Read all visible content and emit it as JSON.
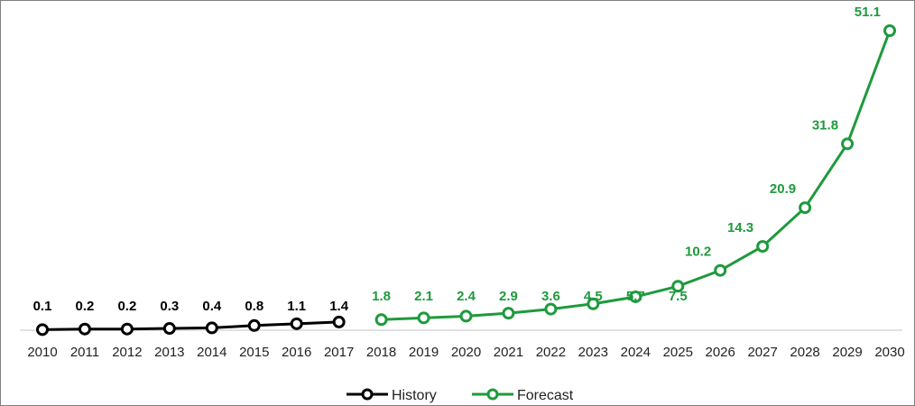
{
  "chart_data": {
    "type": "line",
    "x": [
      "2010",
      "2011",
      "2012",
      "2013",
      "2014",
      "2015",
      "2016",
      "2017",
      "2018",
      "2019",
      "2020",
      "2021",
      "2022",
      "2023",
      "2024",
      "2025",
      "2026",
      "2027",
      "2028",
      "2029",
      "2030"
    ],
    "series": [
      {
        "name": "History",
        "color": "#000000",
        "x": [
          "2010",
          "2011",
          "2012",
          "2013",
          "2014",
          "2015",
          "2016",
          "2017"
        ],
        "values": [
          0.1,
          0.2,
          0.2,
          0.3,
          0.4,
          0.8,
          1.1,
          1.4
        ],
        "labels": [
          "0.1",
          "0.2",
          "0.2",
          "0.3",
          "0.4",
          "0.8",
          "1.1",
          "1.4"
        ]
      },
      {
        "name": "Forecast",
        "color": "#1e9a3c",
        "x": [
          "2018",
          "2019",
          "2020",
          "2021",
          "2022",
          "2023",
          "2024",
          "2025",
          "2026",
          "2027",
          "2028",
          "2029",
          "2030"
        ],
        "values": [
          1.8,
          2.1,
          2.4,
          2.9,
          3.6,
          4.5,
          5.7,
          7.5,
          10.2,
          14.3,
          20.9,
          31.8,
          51.1
        ],
        "labels": [
          "1.8",
          "2.1",
          "2.4",
          "2.9",
          "3.6",
          "4.5",
          "5.7",
          "7.5",
          "10.2",
          "14.3",
          "20.9",
          "31.8",
          "51.1"
        ]
      }
    ],
    "title": "",
    "xlabel": "",
    "ylabel": "",
    "ylim": [
      0,
      55
    ],
    "grid": false,
    "legend": "bottom-center"
  }
}
